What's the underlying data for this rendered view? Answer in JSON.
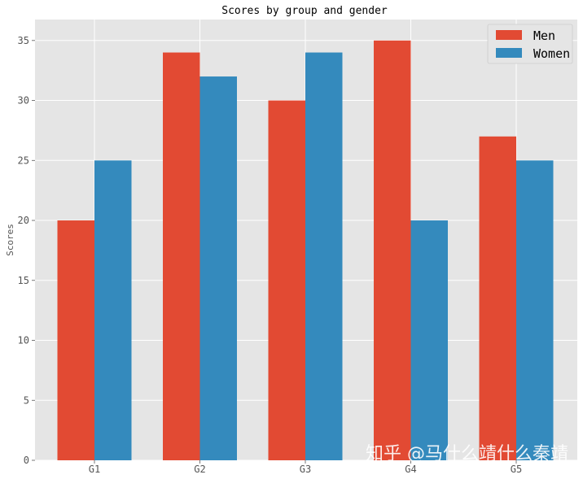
{
  "chart_data": {
    "type": "bar",
    "title": "Scores by group and gender",
    "ylabel": "Scores",
    "xlabel": "",
    "categories": [
      "G1",
      "G2",
      "G3",
      "G4",
      "G5"
    ],
    "series": [
      {
        "name": "Men",
        "values": [
          20,
          34,
          30,
          35,
          27
        ],
        "color": "#E24A33"
      },
      {
        "name": "Women",
        "values": [
          25,
          32,
          34,
          20,
          25
        ],
        "color": "#348ABD"
      }
    ],
    "ylim": [
      0,
      36.75
    ],
    "yticks": [
      0,
      5,
      10,
      15,
      20,
      25,
      30,
      35
    ],
    "grid": true,
    "legend_position": "top-right",
    "background": "#E5E5E5"
  },
  "watermark": "知乎 @马什么靖什么秦靖"
}
